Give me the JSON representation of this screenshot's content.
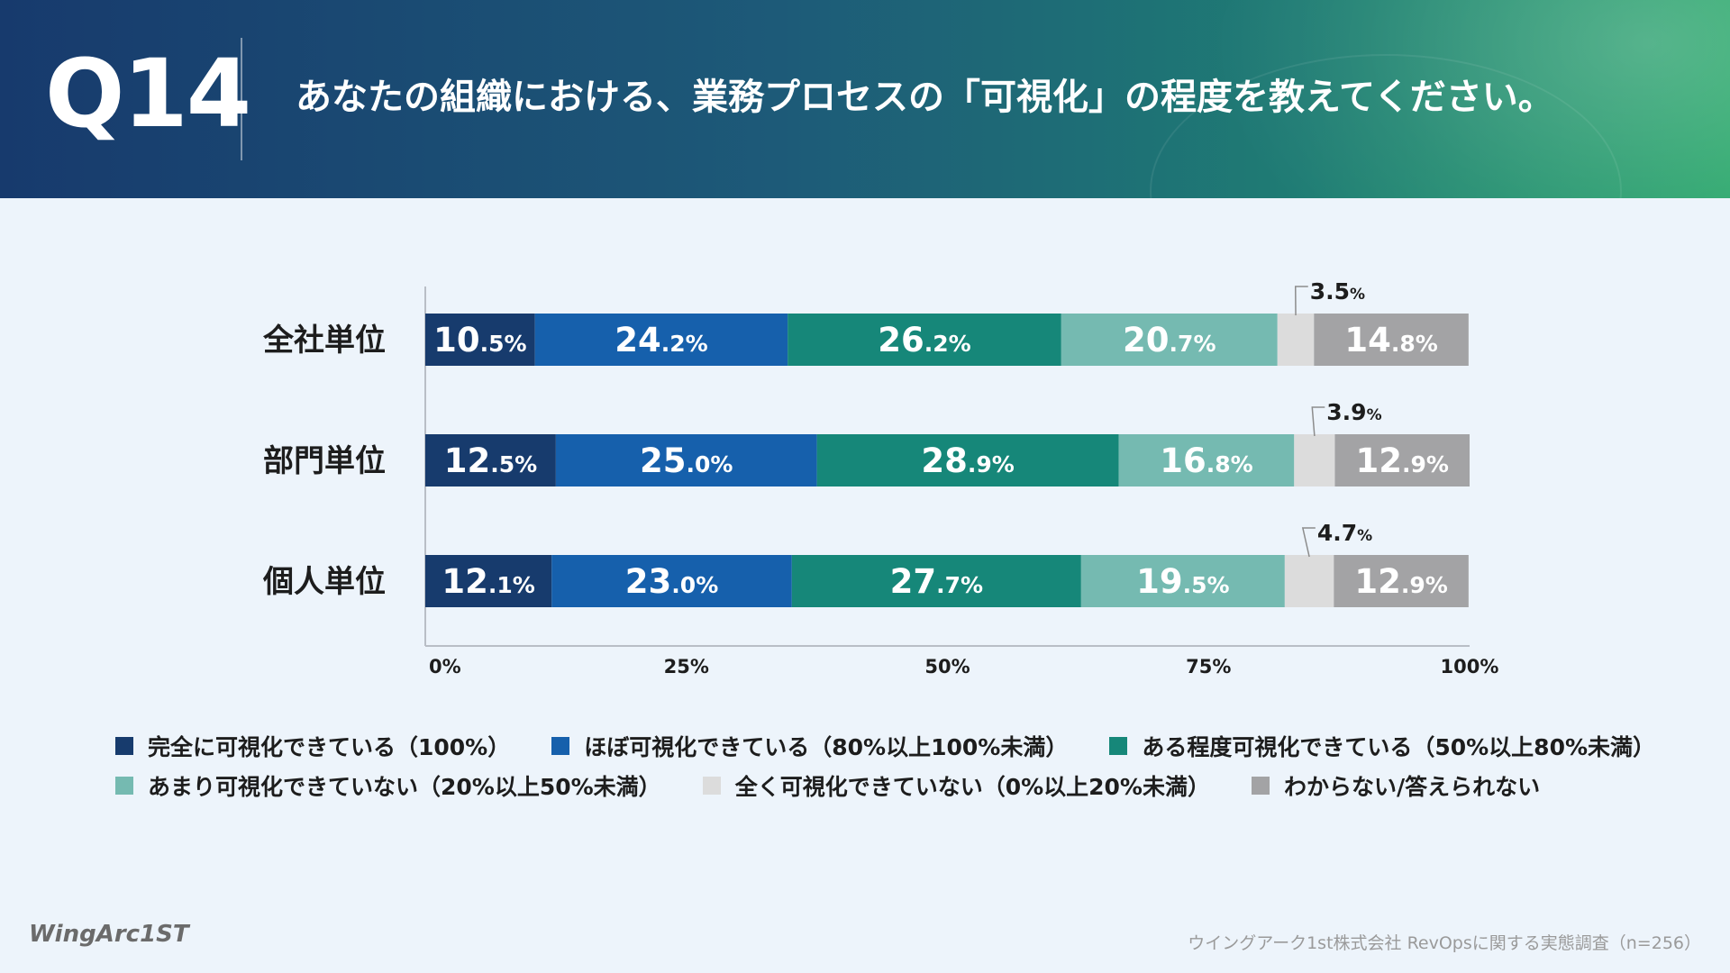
{
  "header": {
    "question_number": "Q14",
    "question_text": "あなたの組織における、業務プロセスの「可視化」の程度を教えてください。"
  },
  "colors": {
    "series": [
      "#173b6d",
      "#1660ac",
      "#168779",
      "#75bab1",
      "#dcdcdc",
      "#a3a3a5"
    ]
  },
  "chart_data": {
    "type": "bar",
    "orientation": "horizontal",
    "stacked": true,
    "categories": [
      "全社単位",
      "部門単位",
      "個人単位"
    ],
    "series": [
      {
        "name": "完全に可視化できている（100%）",
        "values": [
          10.5,
          12.5,
          12.1
        ]
      },
      {
        "name": "ほぼ可視化できている（80%以上100%未満）",
        "values": [
          24.2,
          25.0,
          23.0
        ]
      },
      {
        "name": "ある程度可視化できている（50%以上80%未満）",
        "values": [
          26.2,
          28.9,
          27.7
        ]
      },
      {
        "name": "あまり可視化できていない（20%以上50%未満）",
        "values": [
          20.7,
          16.8,
          19.5
        ]
      },
      {
        "name": "全く可視化できていない（0%以上20%未満）",
        "values": [
          3.5,
          3.9,
          4.7
        ]
      },
      {
        "name": "わからない/答えられない",
        "values": [
          14.8,
          12.9,
          12.9
        ]
      }
    ],
    "xlim": [
      0,
      100
    ],
    "x_ticks": [
      "0%",
      "25%",
      "50%",
      "75%",
      "100%"
    ],
    "x_tick_values": [
      0,
      25,
      50,
      75,
      100
    ],
    "legend": "bottom",
    "grid": false
  },
  "footer": {
    "logo_text": "WingArc1ST",
    "source": "ウイングアーク1st株式会社 RevOpsに関する実態調査（n=256）"
  }
}
